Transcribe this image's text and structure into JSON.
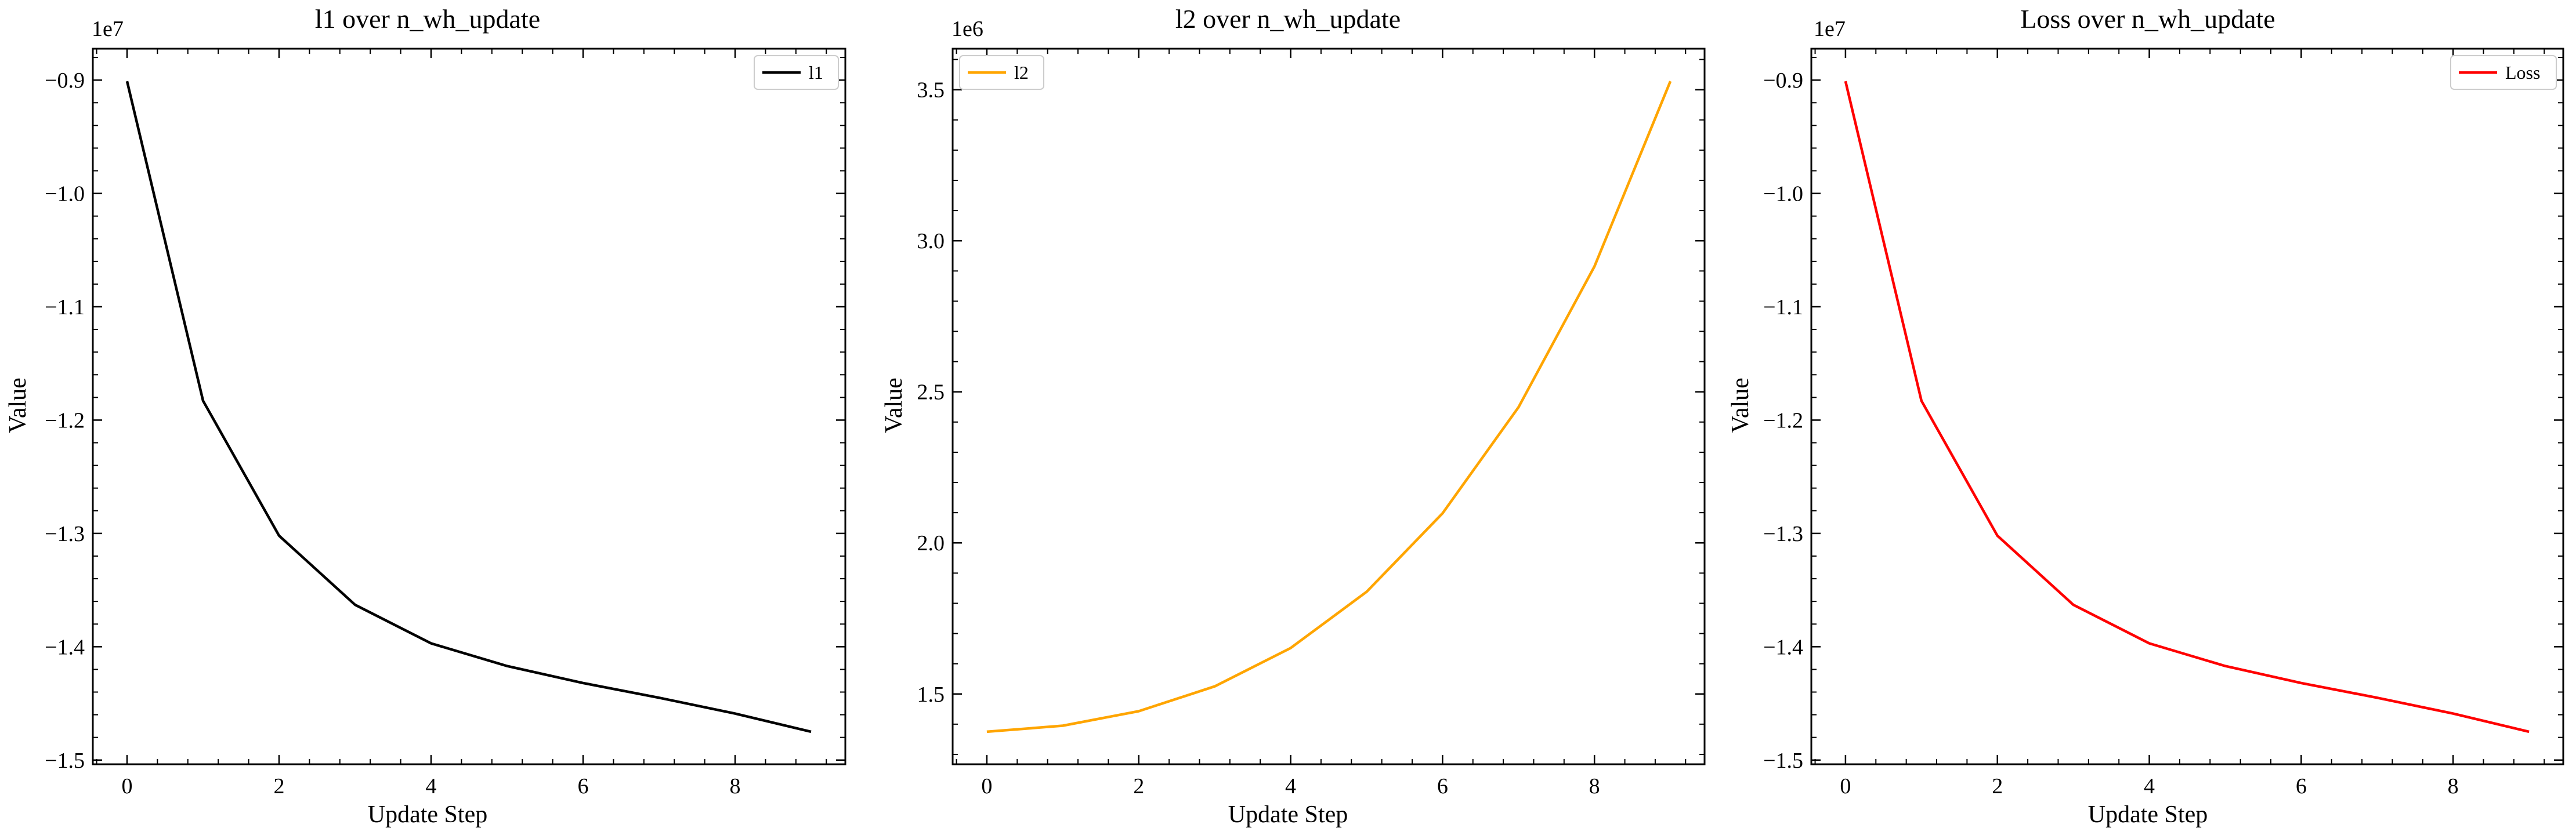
{
  "chart_data": [
    {
      "type": "line",
      "title": "l1 over n_wh_update",
      "xlabel": "Update Step",
      "ylabel": "Value",
      "offset_text": "1e7",
      "x": [
        0,
        1,
        2,
        3,
        4,
        5,
        6,
        7,
        8,
        9
      ],
      "series": [
        {
          "name": "l1",
          "color": "#000000",
          "values": [
            -0.901,
            -1.183,
            -1.302,
            -1.363,
            -1.397,
            -1.417,
            -1.432,
            -1.445,
            -1.459,
            -1.475
          ]
        }
      ],
      "xlim": [
        -0.45,
        9.45
      ],
      "ylim": [
        -1.5037,
        -0.8723
      ],
      "xticks": [
        0,
        2,
        4,
        6,
        8
      ],
      "yticks": [
        -1.5,
        -1.4,
        -1.3,
        -1.2,
        -1.1,
        -1.0,
        -0.9
      ],
      "ytick_labels": [
        "−1.5",
        "−1.4",
        "−1.3",
        "−1.2",
        "−1.1",
        "−1.0",
        "−0.9"
      ],
      "legend": "top-right",
      "grid": false
    },
    {
      "type": "line",
      "title": "l2 over n_wh_update",
      "xlabel": "Update Step",
      "ylabel": "Value",
      "offset_text": "1e6",
      "x": [
        0,
        1,
        2,
        3,
        4,
        5,
        6,
        7,
        8,
        9
      ],
      "series": [
        {
          "name": "l2",
          "color": "#ffa500",
          "values": [
            1.375,
            1.395,
            1.443,
            1.525,
            1.652,
            1.838,
            2.098,
            2.449,
            2.915,
            3.528
          ]
        }
      ],
      "xlim": [
        -0.45,
        9.45
      ],
      "ylim": [
        1.2673,
        3.6357
      ],
      "xticks": [
        0,
        2,
        4,
        6,
        8
      ],
      "yticks": [
        1.5,
        2.0,
        2.5,
        3.0,
        3.5
      ],
      "ytick_labels": [
        "1.5",
        "2.0",
        "2.5",
        "3.0",
        "3.5"
      ],
      "legend": "top-left",
      "grid": false
    },
    {
      "type": "line",
      "title": "Loss over n_wh_update",
      "xlabel": "Update Step",
      "ylabel": "Value",
      "offset_text": "1e7",
      "x": [
        0,
        1,
        2,
        3,
        4,
        5,
        6,
        7,
        8,
        9
      ],
      "series": [
        {
          "name": "Loss",
          "color": "#ff0000",
          "values": [
            -0.901,
            -1.183,
            -1.302,
            -1.363,
            -1.397,
            -1.417,
            -1.432,
            -1.445,
            -1.459,
            -1.475
          ]
        }
      ],
      "xlim": [
        -0.45,
        9.45
      ],
      "ylim": [
        -1.5037,
        -0.8723
      ],
      "xticks": [
        0,
        2,
        4,
        6,
        8
      ],
      "yticks": [
        -1.5,
        -1.4,
        -1.3,
        -1.2,
        -1.1,
        -1.0,
        -0.9
      ],
      "ytick_labels": [
        "−1.5",
        "−1.4",
        "−1.3",
        "−1.2",
        "−1.1",
        "−1.0",
        "−0.9"
      ],
      "legend": "top-right",
      "grid": false
    }
  ]
}
